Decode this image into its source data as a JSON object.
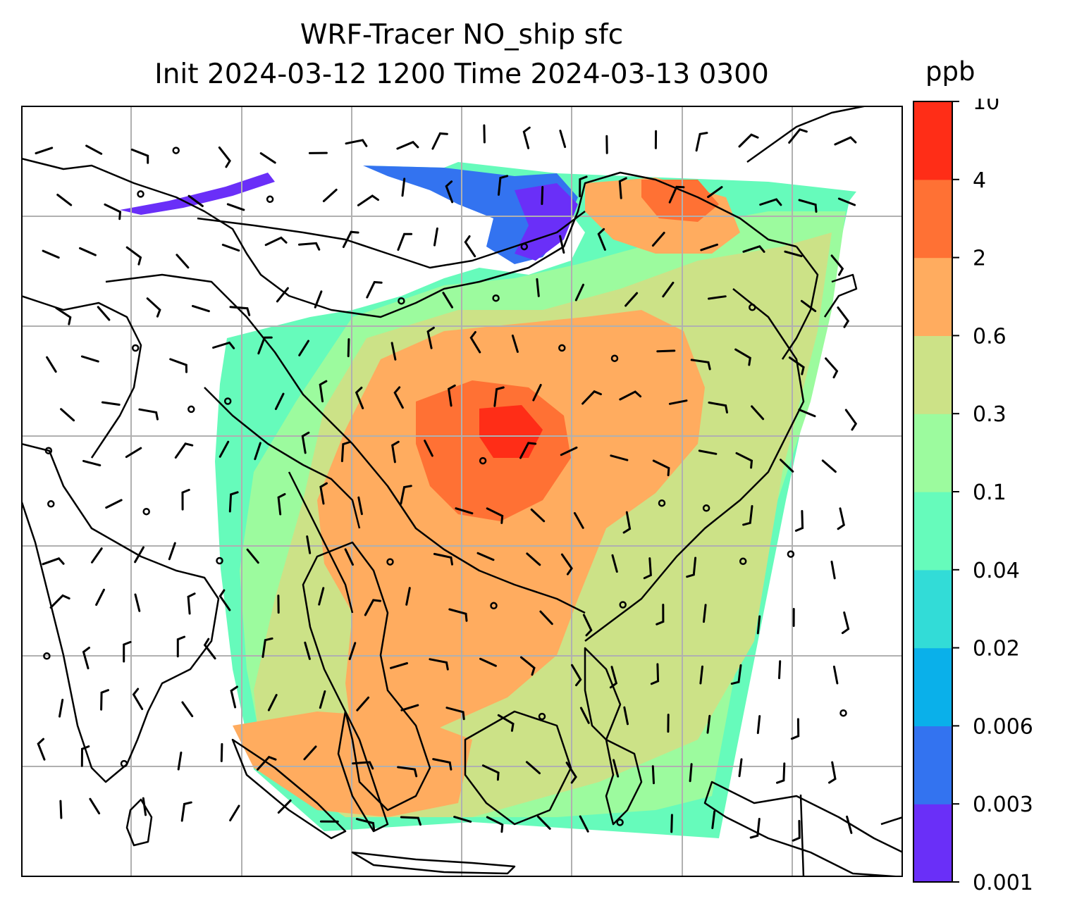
{
  "title": {
    "line1": "WRF-Tracer NO_ship sfc",
    "line2": "Init 2024-03-12 1200 Time 2024-03-13 0300"
  },
  "colorbar": {
    "unit": "ppb",
    "ticks": [
      "0.001",
      "0.003",
      "0.006",
      "0.02",
      "0.04",
      "0.1",
      "0.3",
      "0.6",
      "2",
      "4",
      "10"
    ],
    "colors": [
      "#6a2ff8",
      "#3373f0",
      "#0ab0ea",
      "#32dcd7",
      "#66fbbb",
      "#9cfb9e",
      "#cce287",
      "#ffac5f",
      "#ff7134",
      "#ff2d17"
    ]
  },
  "map": {
    "gridlines": true,
    "background": "#ffffff",
    "coastline_color": "#000000"
  }
}
